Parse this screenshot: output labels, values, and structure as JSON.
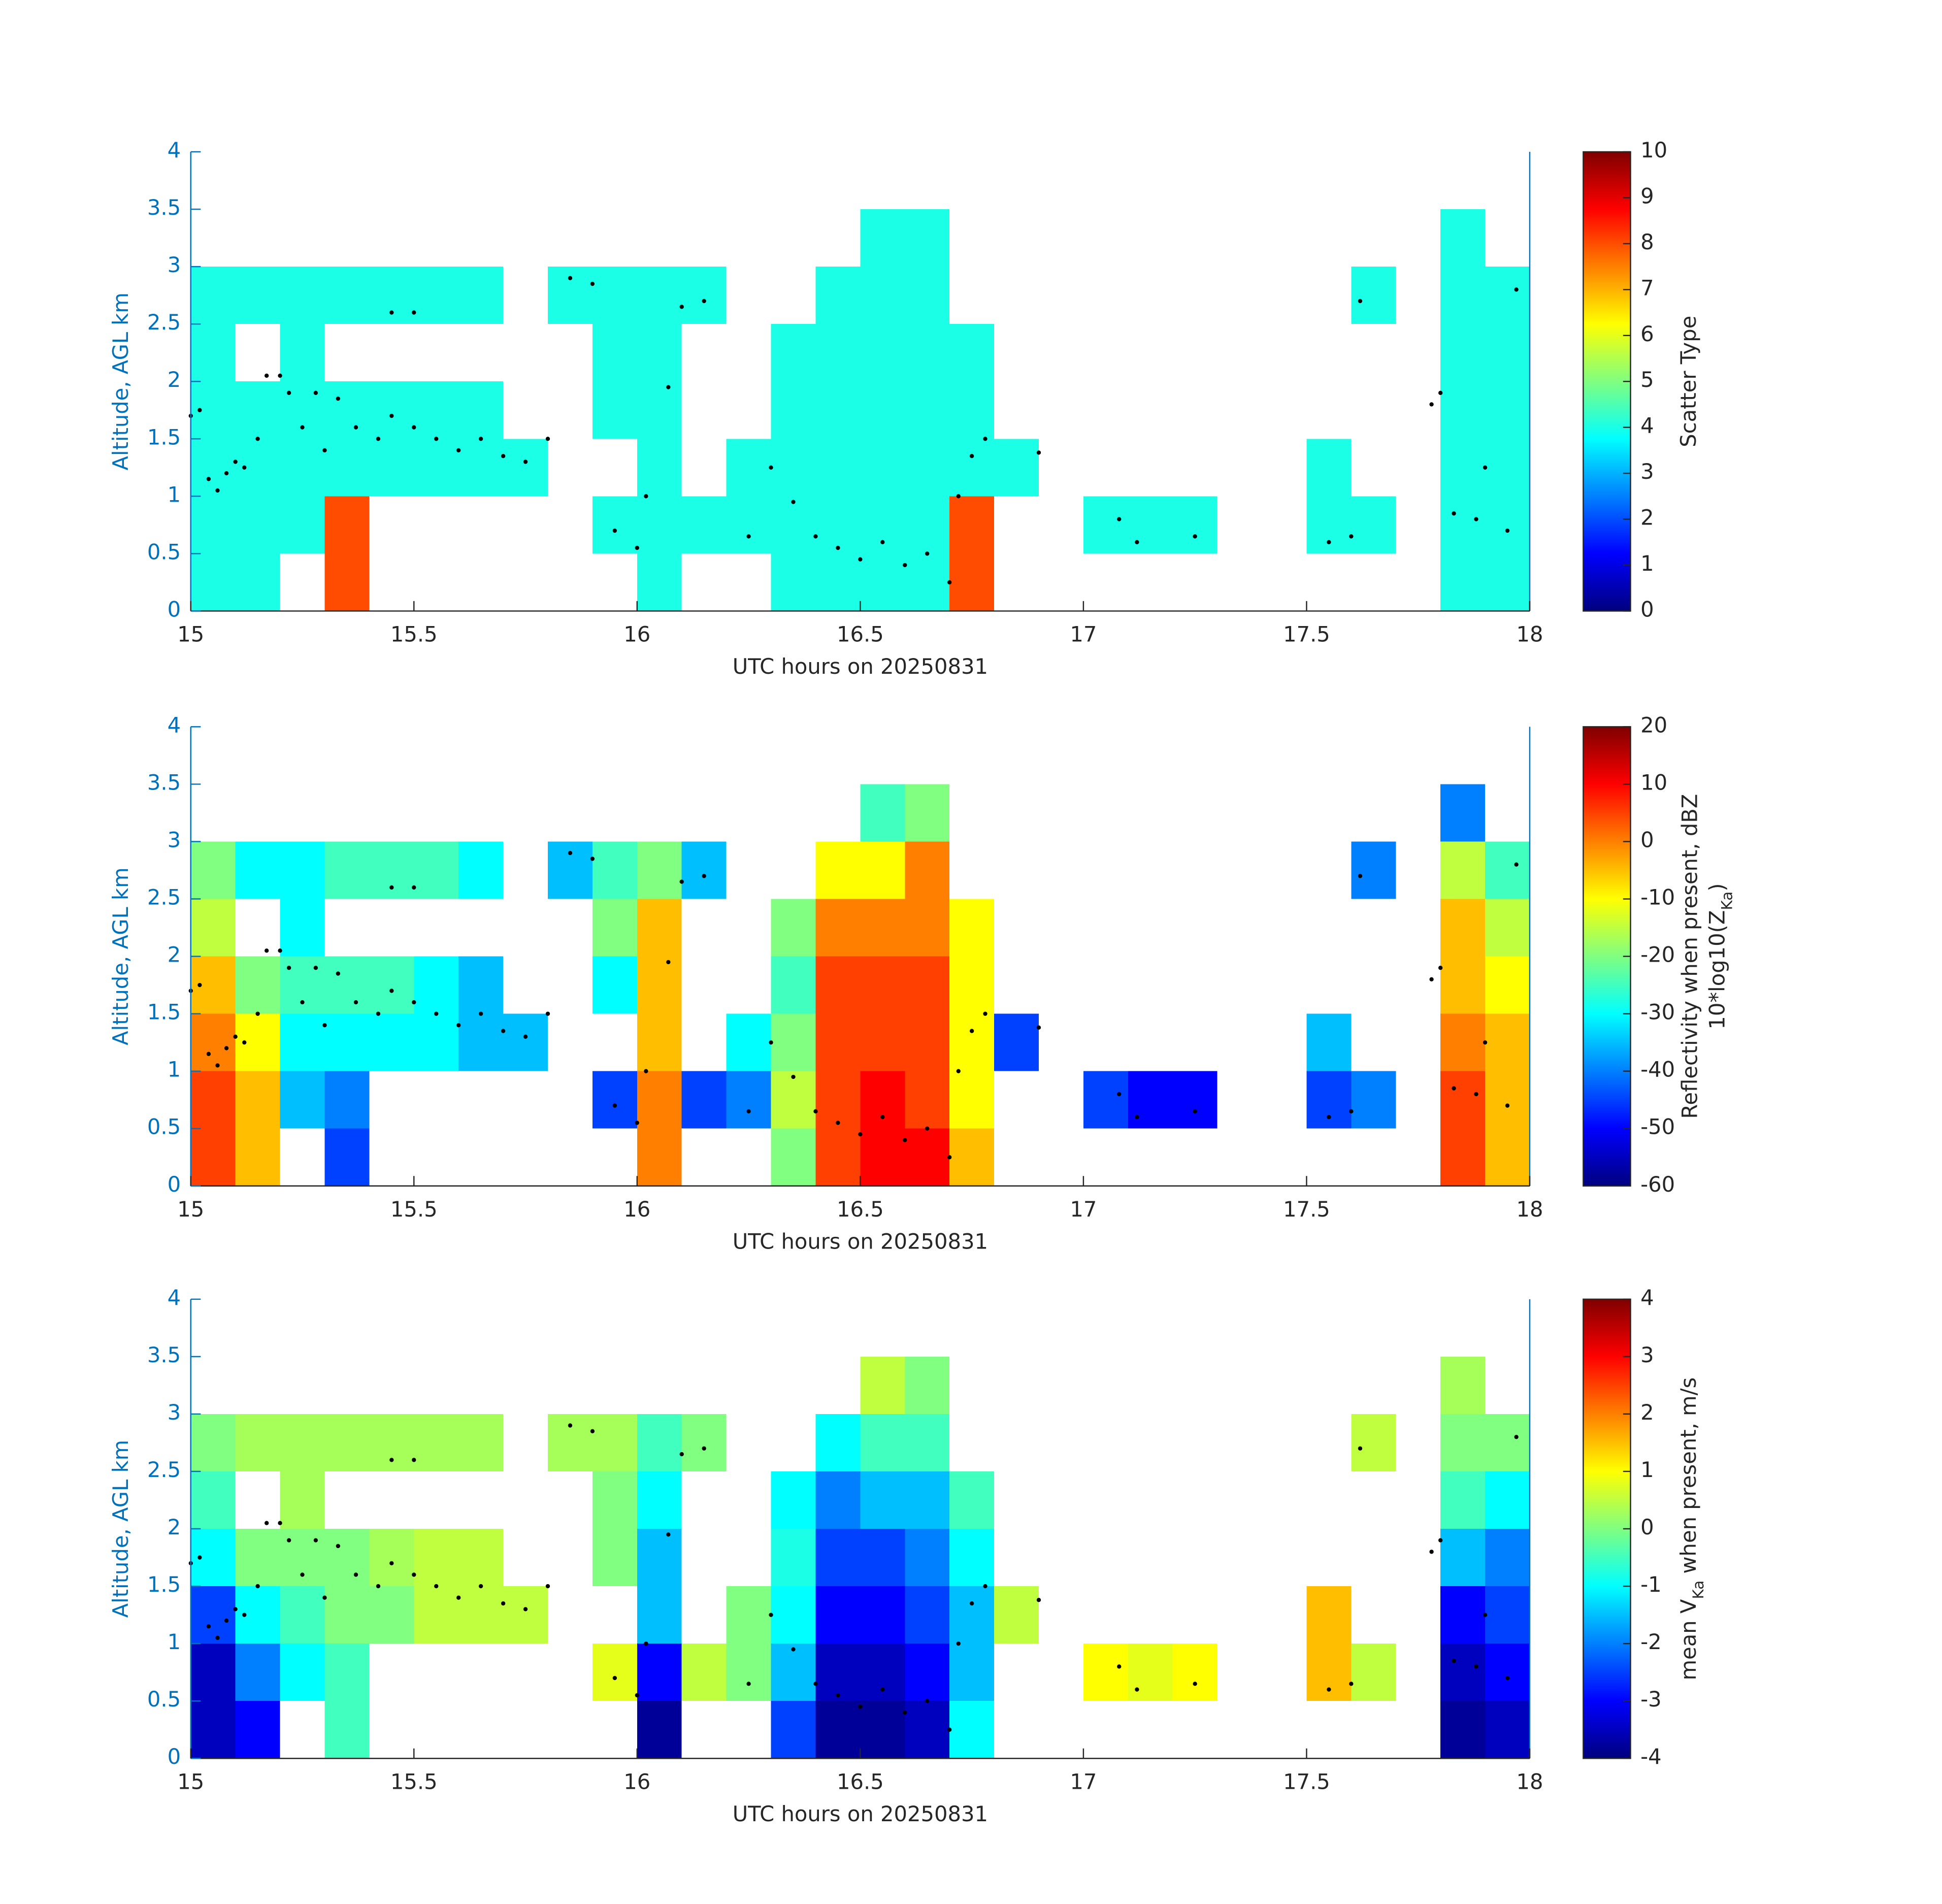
{
  "chart_data": [
    {
      "type": "heatmap",
      "colormap": "jet",
      "xlabel": "UTC hours on 20250831",
      "ylabel": "Altitude, AGL km",
      "xlim": [
        15,
        18
      ],
      "xticks": [
        15,
        15.5,
        16,
        16.5,
        17,
        17.5,
        18
      ],
      "ylim": [
        0,
        4
      ],
      "yticks": [
        0,
        0.5,
        1,
        1.5,
        2,
        2.5,
        3,
        3.5,
        4
      ],
      "x": [
        15.05,
        15.15,
        15.25,
        15.35,
        15.45,
        15.55,
        15.65,
        15.75,
        15.85,
        15.95,
        16.05,
        16.15,
        16.25,
        16.35,
        16.45,
        16.55,
        16.65,
        16.75,
        16.85,
        16.95,
        17.05,
        17.15,
        17.25,
        17.35,
        17.45,
        17.55,
        17.65,
        17.75,
        17.85,
        17.95
      ],
      "y": [
        0.25,
        0.75,
        1.25,
        1.75,
        2.25,
        2.75,
        3.25
      ],
      "z": [
        [
          4,
          4,
          4,
          4,
          4,
          4,
          null
        ],
        [
          4,
          4,
          4,
          4,
          null,
          4,
          null
        ],
        [
          null,
          4,
          4,
          4,
          4,
          4,
          null
        ],
        [
          8,
          8,
          4,
          4,
          null,
          4,
          null
        ],
        [
          null,
          null,
          4,
          4,
          null,
          4,
          null
        ],
        [
          null,
          null,
          4,
          4,
          null,
          4,
          null
        ],
        [
          null,
          null,
          4,
          4,
          null,
          4,
          null
        ],
        [
          null,
          null,
          4,
          null,
          null,
          null,
          null
        ],
        [
          null,
          null,
          null,
          null,
          null,
          4,
          null
        ],
        [
          null,
          4,
          null,
          4,
          4,
          4,
          null
        ],
        [
          4,
          4,
          4,
          4,
          4,
          4,
          null
        ],
        [
          null,
          4,
          null,
          null,
          null,
          4,
          null
        ],
        [
          null,
          4,
          4,
          null,
          null,
          null,
          null
        ],
        [
          4,
          4,
          4,
          4,
          4,
          null,
          null
        ],
        [
          4,
          4,
          4,
          4,
          4,
          4,
          null
        ],
        [
          4,
          4,
          4,
          4,
          4,
          4,
          4
        ],
        [
          4,
          4,
          4,
          4,
          4,
          4,
          4
        ],
        [
          8,
          8,
          4,
          4,
          4,
          null,
          null
        ],
        [
          null,
          null,
          4,
          null,
          null,
          null,
          null
        ],
        [
          null,
          null,
          null,
          null,
          null,
          null,
          null
        ],
        [
          null,
          4,
          null,
          null,
          null,
          null,
          null
        ],
        [
          null,
          4,
          null,
          null,
          null,
          null,
          null
        ],
        [
          null,
          4,
          null,
          null,
          null,
          null,
          null
        ],
        [
          null,
          null,
          null,
          null,
          null,
          null,
          null
        ],
        [
          null,
          null,
          null,
          null,
          null,
          null,
          null
        ],
        [
          null,
          4,
          4,
          null,
          null,
          null,
          null
        ],
        [
          null,
          4,
          null,
          null,
          null,
          4,
          null
        ],
        [
          null,
          null,
          null,
          null,
          null,
          null,
          null
        ],
        [
          4,
          4,
          4,
          4,
          4,
          4,
          4
        ],
        [
          4,
          4,
          4,
          4,
          4,
          4,
          null
        ]
      ],
      "dots": {
        "x": [
          15.0,
          15.02,
          15.04,
          15.06,
          15.08,
          15.1,
          15.12,
          15.15,
          15.17,
          15.2,
          15.22,
          15.25,
          15.28,
          15.3,
          15.33,
          15.37,
          15.42,
          15.45,
          15.5,
          15.55,
          15.6,
          15.65,
          15.7,
          15.75,
          15.8,
          15.45,
          15.5,
          15.85,
          15.9,
          15.95,
          16.0,
          16.02,
          16.07,
          16.1,
          16.15,
          16.25,
          16.3,
          16.35,
          16.4,
          16.45,
          16.5,
          16.55,
          16.6,
          16.65,
          16.7,
          16.72,
          16.75,
          16.78,
          16.9,
          17.08,
          17.12,
          17.25,
          17.55,
          17.6,
          17.62,
          17.78,
          17.8,
          17.83,
          17.88,
          17.9,
          17.95,
          17.97
        ],
        "y": [
          1.7,
          1.75,
          1.15,
          1.05,
          1.2,
          1.3,
          1.25,
          1.5,
          2.05,
          2.05,
          1.9,
          1.6,
          1.9,
          1.4,
          1.85,
          1.6,
          1.5,
          1.7,
          1.6,
          1.5,
          1.4,
          1.5,
          1.35,
          1.3,
          1.5,
          2.6,
          2.6,
          2.9,
          2.85,
          0.7,
          0.55,
          1.0,
          1.95,
          2.65,
          2.7,
          0.65,
          1.25,
          0.95,
          0.65,
          0.55,
          0.45,
          0.6,
          0.4,
          0.5,
          0.25,
          1.0,
          1.35,
          1.5,
          1.38,
          0.8,
          0.6,
          0.65,
          0.6,
          0.65,
          2.7,
          1.8,
          1.9,
          0.85,
          0.8,
          1.25,
          0.7,
          2.8
        ]
      },
      "colorbar": {
        "clim": [
          0,
          10
        ],
        "ticks": [
          0,
          1,
          2,
          3,
          4,
          5,
          6,
          7,
          8,
          9,
          10
        ],
        "label": [
          [
            {
              "text": "Scatter Type"
            }
          ]
        ]
      }
    },
    {
      "type": "heatmap",
      "colormap": "jet",
      "xlabel": "UTC hours on 20250831",
      "ylabel": "Altitude, AGL km",
      "xlim": [
        15,
        18
      ],
      "xticks": [
        15,
        15.5,
        16,
        16.5,
        17,
        17.5,
        18
      ],
      "ylim": [
        0,
        4
      ],
      "yticks": [
        0,
        0.5,
        1,
        1.5,
        2,
        2.5,
        3,
        3.5,
        4
      ],
      "x": [
        15.05,
        15.15,
        15.25,
        15.35,
        15.45,
        15.55,
        15.65,
        15.75,
        15.85,
        15.95,
        16.05,
        16.15,
        16.25,
        16.35,
        16.45,
        16.55,
        16.65,
        16.75,
        16.85,
        16.95,
        17.05,
        17.15,
        17.25,
        17.35,
        17.45,
        17.55,
        17.65,
        17.75,
        17.85,
        17.95
      ],
      "y": [
        0.25,
        0.75,
        1.25,
        1.75,
        2.25,
        2.75,
        3.25
      ],
      "z": [
        [
          5,
          5,
          0,
          -5,
          -15,
          -20,
          null
        ],
        [
          -5,
          -5,
          -10,
          -20,
          null,
          -30,
          null
        ],
        [
          null,
          -35,
          -30,
          -25,
          -30,
          -30,
          null
        ],
        [
          -45,
          -40,
          -30,
          -25,
          null,
          -25,
          null
        ],
        [
          null,
          null,
          -30,
          -25,
          null,
          -25,
          null
        ],
        [
          null,
          null,
          -30,
          -30,
          null,
          -25,
          null
        ],
        [
          null,
          null,
          -35,
          -35,
          null,
          -30,
          null
        ],
        [
          null,
          null,
          -35,
          null,
          null,
          null,
          null
        ],
        [
          null,
          null,
          null,
          null,
          null,
          -35,
          null
        ],
        [
          null,
          -45,
          null,
          -30,
          -20,
          -25,
          null
        ],
        [
          0,
          0,
          -5,
          -5,
          -5,
          -20,
          null
        ],
        [
          null,
          -45,
          null,
          null,
          null,
          -35,
          null
        ],
        [
          null,
          -40,
          -30,
          null,
          null,
          null,
          null
        ],
        [
          -20,
          -15,
          -20,
          -25,
          -20,
          null,
          null
        ],
        [
          5,
          5,
          5,
          5,
          0,
          -10,
          null
        ],
        [
          10,
          10,
          5,
          5,
          0,
          -10,
          -25
        ],
        [
          10,
          5,
          5,
          5,
          0,
          0,
          -20
        ],
        [
          -5,
          -10,
          -10,
          -10,
          -10,
          null,
          null
        ],
        [
          null,
          null,
          -45,
          null,
          null,
          null,
          null
        ],
        [
          null,
          null,
          null,
          null,
          null,
          null,
          null
        ],
        [
          null,
          -45,
          null,
          null,
          null,
          null,
          null
        ],
        [
          null,
          -50,
          null,
          null,
          null,
          null,
          null
        ],
        [
          null,
          -50,
          null,
          null,
          null,
          null,
          null
        ],
        [
          null,
          null,
          null,
          null,
          null,
          null,
          null
        ],
        [
          null,
          null,
          null,
          null,
          null,
          null,
          null
        ],
        [
          null,
          -45,
          -35,
          null,
          null,
          null,
          null
        ],
        [
          null,
          -40,
          null,
          null,
          null,
          -40,
          null
        ],
        [
          null,
          null,
          null,
          null,
          null,
          null,
          null
        ],
        [
          5,
          5,
          0,
          -5,
          -5,
          -15,
          -40
        ],
        [
          -5,
          -5,
          -5,
          -10,
          -15,
          -25,
          null
        ]
      ],
      "colorbar": {
        "clim": [
          -60,
          20
        ],
        "ticks": [
          -60,
          -50,
          -40,
          -30,
          -20,
          -10,
          0,
          10,
          20
        ],
        "label": [
          [
            {
              "text": "Reflectivity when present, dBZ"
            }
          ],
          [
            {
              "text": "10*log10(Z"
            },
            {
              "text": "Ka",
              "sub": true
            },
            {
              "text": ")"
            }
          ]
        ]
      }
    },
    {
      "type": "heatmap",
      "colormap": "jet",
      "xlabel": "UTC hours on 20250831",
      "ylabel": "Altitude, AGL km",
      "xlim": [
        15,
        18
      ],
      "xticks": [
        15,
        15.5,
        16,
        16.5,
        17,
        17.5,
        18
      ],
      "ylim": [
        0,
        4
      ],
      "yticks": [
        0,
        0.5,
        1,
        1.5,
        2,
        2.5,
        3,
        3.5,
        4
      ],
      "x": [
        15.05,
        15.15,
        15.25,
        15.35,
        15.45,
        15.55,
        15.65,
        15.75,
        15.85,
        15.95,
        16.05,
        16.15,
        16.25,
        16.35,
        16.45,
        16.55,
        16.65,
        16.75,
        16.85,
        16.95,
        17.05,
        17.15,
        17.25,
        17.35,
        17.45,
        17.55,
        17.65,
        17.75,
        17.85,
        17.95
      ],
      "y": [
        0.25,
        0.75,
        1.25,
        1.75,
        2.25,
        2.75,
        3.25
      ],
      "z": [
        [
          -3.5,
          -3.5,
          -2.5,
          -1,
          -0.5,
          0,
          null
        ],
        [
          -3,
          -2,
          -1,
          0,
          null,
          0.3,
          null
        ],
        [
          null,
          -1,
          -0.5,
          0,
          0.3,
          0.3,
          null
        ],
        [
          -0.5,
          -0.5,
          0,
          0,
          null,
          0.3,
          null
        ],
        [
          null,
          null,
          0,
          0.3,
          null,
          0.3,
          null
        ],
        [
          null,
          null,
          0.5,
          0.5,
          null,
          0.3,
          null
        ],
        [
          null,
          null,
          0.5,
          0.5,
          null,
          0.3,
          null
        ],
        [
          null,
          null,
          0.5,
          null,
          null,
          null,
          null
        ],
        [
          null,
          null,
          null,
          null,
          null,
          0.3,
          null
        ],
        [
          null,
          0.8,
          null,
          0,
          0,
          0.3,
          null
        ],
        [
          -3.8,
          -3,
          -1.5,
          -1.5,
          -1,
          -0.5,
          null
        ],
        [
          null,
          0.5,
          null,
          null,
          null,
          0,
          null
        ],
        [
          null,
          0,
          0,
          null,
          null,
          null,
          null
        ],
        [
          -2.5,
          -1.5,
          -1,
          -0.8,
          -1,
          null,
          null
        ],
        [
          -3.8,
          -3.5,
          -3,
          -2.5,
          -2,
          -1,
          null
        ],
        [
          -3.8,
          -3.5,
          -3,
          -2.5,
          -1.5,
          -0.5,
          0.5
        ],
        [
          -3.5,
          -3,
          -2.5,
          -2,
          -1.5,
          -0.5,
          0
        ],
        [
          -1,
          -1.5,
          -1.5,
          -1,
          -0.5,
          null,
          null
        ],
        [
          null,
          null,
          0.5,
          null,
          null,
          null,
          null
        ],
        [
          null,
          null,
          null,
          null,
          null,
          null,
          null
        ],
        [
          null,
          1,
          null,
          null,
          null,
          null,
          null
        ],
        [
          null,
          0.8,
          null,
          null,
          null,
          null,
          null
        ],
        [
          null,
          1,
          null,
          null,
          null,
          null,
          null
        ],
        [
          null,
          null,
          null,
          null,
          null,
          null,
          null
        ],
        [
          null,
          null,
          null,
          null,
          null,
          null,
          null
        ],
        [
          null,
          1.5,
          1.5,
          null,
          null,
          null,
          null
        ],
        [
          null,
          0.5,
          null,
          null,
          null,
          0.5,
          null
        ],
        [
          null,
          null,
          null,
          null,
          null,
          null,
          null
        ],
        [
          -3.8,
          -3.5,
          -3,
          -1.5,
          -0.5,
          0,
          0.3
        ],
        [
          -3.5,
          -3,
          -2.5,
          -2,
          -1,
          0,
          null
        ]
      ],
      "colorbar": {
        "clim": [
          -4,
          4
        ],
        "ticks": [
          -4,
          -3,
          -2,
          -1,
          0,
          1,
          2,
          3,
          4
        ],
        "label": [
          [
            {
              "text": "mean V"
            },
            {
              "text": "Ka",
              "sub": true
            },
            {
              "text": " when present, m/s"
            }
          ]
        ]
      }
    }
  ]
}
